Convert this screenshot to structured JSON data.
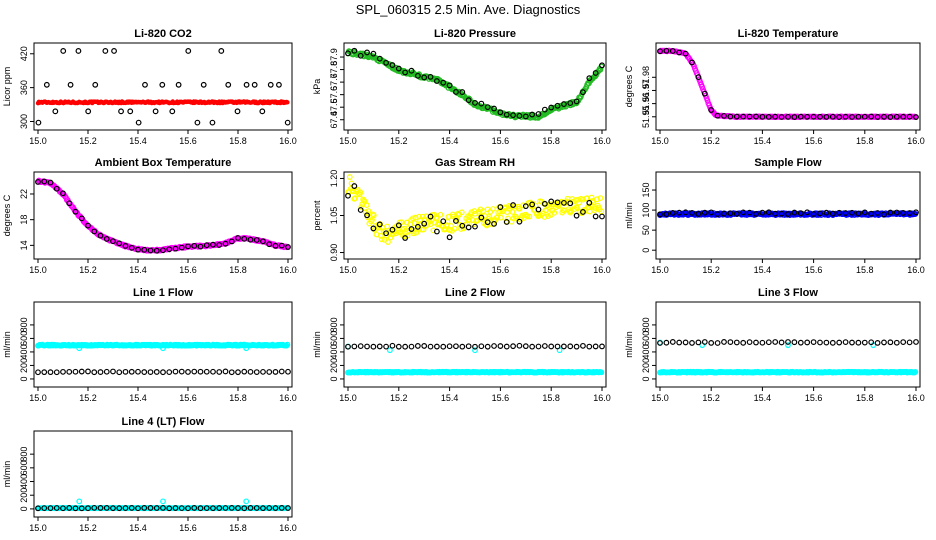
{
  "page": {
    "title": "SPL_060315  2.5 Min. Ave. Diagnostics"
  },
  "colors": {
    "red": "#ff0000",
    "green": "#22bb22",
    "magenta": "#ff00ff",
    "yellow": "#ffff00",
    "blue": "#0000ff",
    "cyan": "#00ffff",
    "black": "#000000"
  },
  "chart_data": [
    {
      "type": "scatter",
      "title": "Li-820 CO2",
      "ylabel": "Licor ppm",
      "xlim": [
        15.0,
        16.0
      ],
      "ylim": [
        292,
        432
      ],
      "xticks": [
        15.0,
        15.2,
        15.4,
        15.6,
        15.8,
        16.0
      ],
      "yticks": [
        300,
        360,
        420
      ],
      "ytick_labels": [
        "300",
        "360",
        "420"
      ],
      "series": [
        {
          "color": "red",
          "marker": "dot",
          "mode": "const",
          "value": 334,
          "jitter": 1.5
        },
        {
          "color": "black",
          "marker": "ring",
          "mode": "levels",
          "levels": [
            298,
            318,
            365,
            425
          ]
        }
      ]
    },
    {
      "type": "scatter",
      "title": "Li-820 Pressure",
      "ylabel": "kPa",
      "xlim": [
        15.0,
        16.0
      ],
      "ylim": [
        67.35,
        67.98
      ],
      "xticks": [
        15.0,
        15.2,
        15.4,
        15.6,
        15.8,
        16.0
      ],
      "yticks": [
        67.4,
        67.5,
        67.6,
        67.7,
        67.8,
        67.9
      ],
      "ytick_labels": [
        "67.4",
        "67.5",
        "67.6",
        "67.7",
        "67.8",
        "67.9"
      ],
      "series": [
        {
          "color": "green",
          "marker": "ring",
          "mode": "curve",
          "jitter": 0.012,
          "x": [
            15.0,
            15.05,
            15.1,
            15.15,
            15.2,
            15.25,
            15.3,
            15.35,
            15.4,
            15.45,
            15.5,
            15.55,
            15.6,
            15.65,
            15.7,
            15.75,
            15.8,
            15.85,
            15.9,
            15.95,
            16.0
          ],
          "y": [
            67.94,
            67.92,
            67.9,
            67.85,
            67.79,
            67.77,
            67.74,
            67.72,
            67.66,
            67.6,
            67.52,
            67.49,
            67.45,
            67.43,
            67.43,
            67.42,
            67.48,
            67.51,
            67.54,
            67.7,
            67.82
          ]
        },
        {
          "color": "black",
          "marker": "ring",
          "mode": "curve",
          "sample": 0.025,
          "jitter": 0.02,
          "x": [
            15.0,
            15.05,
            15.1,
            15.15,
            15.2,
            15.25,
            15.3,
            15.35,
            15.4,
            15.45,
            15.5,
            15.55,
            15.6,
            15.65,
            15.7,
            15.75,
            15.8,
            15.85,
            15.9,
            15.95,
            16.0
          ],
          "y": [
            67.95,
            67.93,
            67.91,
            67.86,
            67.8,
            67.78,
            67.75,
            67.72,
            67.67,
            67.61,
            67.54,
            67.5,
            67.47,
            67.44,
            67.44,
            67.43,
            67.5,
            67.53,
            67.55,
            67.72,
            67.84
          ]
        }
      ]
    },
    {
      "type": "scatter",
      "title": "Li-820 Temperature",
      "ylabel": "degrees C",
      "xlim": [
        15.0,
        16.0
      ],
      "ylim": [
        51.943,
        52.003
      ],
      "xticks": [
        15.0,
        15.2,
        15.4,
        15.6,
        15.8,
        16.0
      ],
      "yticks": [
        51.95,
        51.96,
        51.97,
        51.98
      ],
      "ytick_labels": [
        "51.95",
        "51.96",
        "51.97",
        "51.98"
      ],
      "series": [
        {
          "color": "magenta",
          "marker": "ring",
          "mode": "curve",
          "jitter": 0.0003,
          "x": [
            15.0,
            15.05,
            15.1,
            15.13,
            15.16,
            15.18,
            15.2,
            15.22,
            15.3,
            15.6,
            16.0
          ],
          "y": [
            52.0,
            52.0,
            51.998,
            51.99,
            51.975,
            51.965,
            51.955,
            51.951,
            51.95,
            51.95,
            51.95
          ]
        },
        {
          "color": "black",
          "marker": "ring",
          "mode": "curve",
          "sample": 0.025,
          "jitter": 0.0002,
          "x": [
            15.0,
            15.05,
            15.1,
            15.13,
            15.16,
            15.18,
            15.2,
            15.22,
            15.3,
            15.6,
            16.0
          ],
          "y": [
            52.0,
            52.0,
            51.998,
            51.99,
            51.975,
            51.965,
            51.955,
            51.951,
            51.95,
            51.95,
            51.95
          ]
        }
      ]
    },
    {
      "type": "scatter",
      "title": "Ambient Box Temperature",
      "ylabel": "degrees C",
      "xlim": [
        15.0,
        16.0
      ],
      "ylim": [
        12.5,
        24.8
      ],
      "xticks": [
        15.0,
        15.2,
        15.4,
        15.6,
        15.8,
        16.0
      ],
      "yticks": [
        14,
        18,
        22
      ],
      "ytick_labels": [
        "14",
        "18",
        "22"
      ],
      "series": [
        {
          "color": "magenta",
          "marker": "ring",
          "mode": "curve",
          "jitter": 0.12,
          "x": [
            15.0,
            15.05,
            15.1,
            15.15,
            15.2,
            15.25,
            15.3,
            15.35,
            15.4,
            15.45,
            15.5,
            15.55,
            15.6,
            15.65,
            15.7,
            15.75,
            15.8,
            15.85,
            15.9,
            15.95,
            16.0
          ],
          "y": [
            24.0,
            23.7,
            22.0,
            19.3,
            17.0,
            15.5,
            14.6,
            13.9,
            13.4,
            13.2,
            13.3,
            13.6,
            13.8,
            13.9,
            14.0,
            14.3,
            15.1,
            15.0,
            14.6,
            14.0,
            13.7
          ]
        },
        {
          "color": "black",
          "marker": "ring",
          "mode": "curve",
          "sample": 0.025,
          "jitter": 0.12,
          "x": [
            15.0,
            15.05,
            15.1,
            15.15,
            15.2,
            15.25,
            15.3,
            15.35,
            15.4,
            15.45,
            15.5,
            15.55,
            15.6,
            15.65,
            15.7,
            15.75,
            15.8,
            15.85,
            15.9,
            15.95,
            16.0
          ],
          "y": [
            24.0,
            23.7,
            22.0,
            19.3,
            17.0,
            15.5,
            14.6,
            13.9,
            13.4,
            13.2,
            13.3,
            13.6,
            13.8,
            13.9,
            14.0,
            14.3,
            15.1,
            15.0,
            14.6,
            14.0,
            13.7
          ]
        }
      ]
    },
    {
      "type": "scatter",
      "title": "Gas Stream RH",
      "ylabel": "percent",
      "xlim": [
        15.0,
        16.0
      ],
      "ylim": [
        0.89,
        1.21
      ],
      "xticks": [
        15.0,
        15.2,
        15.4,
        15.6,
        15.8,
        16.0
      ],
      "yticks": [
        0.9,
        1.05,
        1.2
      ],
      "ytick_labels": [
        "0.90",
        "1.05",
        "1.20"
      ],
      "series": [
        {
          "color": "yellow",
          "marker": "ring",
          "mode": "curve",
          "jitter": 0.035,
          "x": [
            15.0,
            15.05,
            15.1,
            15.15,
            15.2,
            15.3,
            15.4,
            15.5,
            15.6,
            15.7,
            15.8,
            15.9,
            16.0
          ],
          "y": [
            1.18,
            1.12,
            1.02,
            0.97,
            0.99,
            1.02,
            1.02,
            1.04,
            1.05,
            1.07,
            1.08,
            1.09,
            1.09
          ]
        },
        {
          "color": "black",
          "marker": "ring",
          "mode": "curve",
          "sample": 0.025,
          "jitter": 0.04,
          "x": [
            15.0,
            15.05,
            15.1,
            15.15,
            15.2,
            15.3,
            15.4,
            15.5,
            15.6,
            15.7,
            15.8,
            15.9,
            16.0
          ],
          "y": [
            1.17,
            1.09,
            1.0,
            0.96,
            0.98,
            1.02,
            1.0,
            1.03,
            1.05,
            1.06,
            1.08,
            1.07,
            1.06
          ]
        }
      ]
    },
    {
      "type": "scatter",
      "title": "Sample Flow",
      "ylabel": "ml/min",
      "xlim": [
        15.0,
        16.0
      ],
      "ylim": [
        -12,
        185
      ],
      "xticks": [
        15.0,
        15.2,
        15.4,
        15.6,
        15.8,
        16.0
      ],
      "yticks": [
        0,
        50,
        100,
        150
      ],
      "ytick_labels": [
        "0",
        "50",
        "100",
        "150"
      ],
      "series": [
        {
          "color": "blue",
          "marker": "ring",
          "mode": "const",
          "value": 90,
          "jitter": 2.5
        },
        {
          "color": "black",
          "marker": "ring",
          "mode": "const",
          "value": 92,
          "jitter": 2.5,
          "sample": 0.025
        }
      ]
    },
    {
      "type": "scatter",
      "title": "Line 1 Flow",
      "ylabel": "ml/min",
      "xlim": [
        15.0,
        16.0
      ],
      "ylim": [
        -60,
        1080
      ],
      "xticks": [
        15.0,
        15.2,
        15.4,
        15.6,
        15.8,
        16.0
      ],
      "yticks": [
        0,
        200,
        400,
        600,
        800
      ],
      "ytick_labels": [
        "0",
        "200",
        "400",
        "600",
        "800"
      ],
      "series": [
        {
          "color": "cyan",
          "marker": "ring",
          "mode": "const",
          "value": 500,
          "jitter": 8,
          "outliers": [
            [
              15.165,
              455
            ],
            [
              15.5,
              455
            ],
            [
              15.833,
              455
            ]
          ]
        },
        {
          "color": "black",
          "marker": "ring",
          "mode": "const",
          "value": 105,
          "jitter": 6,
          "sample": 0.025
        }
      ]
    },
    {
      "type": "scatter",
      "title": "Line 2 Flow",
      "ylabel": "ml/min",
      "xlim": [
        15.0,
        16.0
      ],
      "ylim": [
        -60,
        1080
      ],
      "xticks": [
        15.0,
        15.2,
        15.4,
        15.6,
        15.8,
        16.0
      ],
      "yticks": [
        0,
        200,
        400,
        600,
        800
      ],
      "ytick_labels": [
        "0",
        "200",
        "400",
        "600",
        "800"
      ],
      "series": [
        {
          "color": "cyan",
          "marker": "ring",
          "mode": "const",
          "value": 100,
          "jitter": 6,
          "outliers": [
            [
              15.0,
              480
            ],
            [
              15.165,
              425
            ],
            [
              15.5,
              425
            ],
            [
              15.833,
              425
            ]
          ]
        },
        {
          "color": "black",
          "marker": "ring",
          "mode": "const",
          "value": 485,
          "jitter": 8,
          "sample": 0.025
        }
      ]
    },
    {
      "type": "scatter",
      "title": "Line 3 Flow",
      "ylabel": "ml/min",
      "xlim": [
        15.0,
        16.0
      ],
      "ylim": [
        -60,
        1080
      ],
      "xticks": [
        15.0,
        15.2,
        15.4,
        15.6,
        15.8,
        16.0
      ],
      "yticks": [
        0,
        200,
        400,
        600,
        800
      ],
      "ytick_labels": [
        "0",
        "200",
        "400",
        "600",
        "800"
      ],
      "series": [
        {
          "color": "cyan",
          "marker": "ring",
          "mode": "const",
          "value": 100,
          "jitter": 6,
          "outliers": [
            [
              15.0,
              540
            ],
            [
              15.165,
              500
            ],
            [
              15.5,
              500
            ],
            [
              15.833,
              500
            ]
          ]
        },
        {
          "color": "black",
          "marker": "ring",
          "mode": "const",
          "value": 540,
          "jitter": 8,
          "sample": 0.025
        }
      ]
    },
    {
      "type": "scatter",
      "title": "Line 4 (LT) Flow",
      "ylabel": "ml/min",
      "xlim": [
        15.0,
        16.0
      ],
      "ylim": [
        -60,
        1080
      ],
      "xticks": [
        15.0,
        15.2,
        15.4,
        15.6,
        15.8,
        16.0
      ],
      "yticks": [
        0,
        200,
        400,
        600,
        800
      ],
      "ytick_labels": [
        "0",
        "200",
        "400",
        "600",
        "800"
      ],
      "series": [
        {
          "color": "cyan",
          "marker": "ring",
          "mode": "const",
          "value": 12,
          "jitter": 3,
          "outliers": [
            [
              15.165,
              110
            ],
            [
              15.5,
              110
            ],
            [
              15.833,
              110
            ]
          ]
        },
        {
          "color": "black",
          "marker": "ring",
          "mode": "const",
          "value": 12,
          "jitter": 3,
          "sample": 0.025
        }
      ]
    }
  ]
}
